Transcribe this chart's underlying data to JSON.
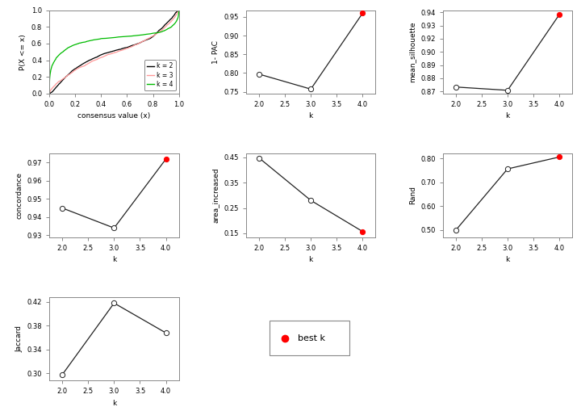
{
  "ecdf_curves": {
    "k2": {
      "color": "#000000",
      "label": "k = 2"
    },
    "k3": {
      "color": "#FF9999",
      "label": "k = 3"
    },
    "k4": {
      "color": "#00BB00",
      "label": "k = 4"
    }
  },
  "subplot_data": {
    "1pac": {
      "k": [
        2.0,
        3.0,
        4.0
      ],
      "y": [
        0.797,
        0.757,
        0.96
      ],
      "ylabel": "1- PAC",
      "best_k": 4,
      "yticks": [
        0.75,
        0.8,
        0.85,
        0.9,
        0.95
      ],
      "ylim": [
        0.745,
        0.968
      ]
    },
    "mean_silhouette": {
      "k": [
        2.0,
        3.0,
        4.0
      ],
      "y": [
        0.872,
        0.869,
        0.938
      ],
      "ylabel": "mean_silhouette",
      "best_k": 4,
      "yticks": [
        0.868,
        0.88,
        0.892,
        0.904,
        0.916,
        0.928,
        0.94
      ],
      "ylim": [
        0.866,
        0.942
      ]
    },
    "concordance": {
      "k": [
        2.0,
        3.0,
        4.0
      ],
      "y": [
        0.945,
        0.934,
        0.972
      ],
      "ylabel": "concordance",
      "best_k": 4,
      "yticks": [
        0.93,
        0.94,
        0.95,
        0.96,
        0.97
      ],
      "ylim": [
        0.929,
        0.975
      ]
    },
    "area_increased": {
      "k": [
        2.0,
        3.0,
        4.0
      ],
      "y": [
        0.448,
        0.28,
        0.157
      ],
      "ylabel": "area_increased",
      "best_k": 4,
      "yticks": [
        0.15,
        0.25,
        0.35,
        0.45
      ],
      "ylim": [
        0.135,
        0.465
      ]
    },
    "Rand": {
      "k": [
        2.0,
        3.0,
        4.0
      ],
      "y": [
        0.499,
        0.756,
        0.806
      ],
      "ylabel": "Rand",
      "best_k": 4,
      "yticks": [
        0.5,
        0.6,
        0.7,
        0.8
      ],
      "ylim": [
        0.47,
        0.82
      ]
    },
    "Jaccard": {
      "k": [
        2.0,
        3.0,
        4.0
      ],
      "y": [
        0.298,
        0.418,
        0.368
      ],
      "ylabel": "Jaccard",
      "best_k": null,
      "yticks": [
        0.3,
        0.34,
        0.38,
        0.42
      ],
      "ylim": [
        0.288,
        0.428
      ]
    }
  },
  "best_k_color": "#FF0000",
  "open_circle_color": "#FFFFFF",
  "line_color": "#222222",
  "bg_color": "#FFFFFF",
  "axis_color": "#888888",
  "font_size": 6.5,
  "tick_size": 6
}
